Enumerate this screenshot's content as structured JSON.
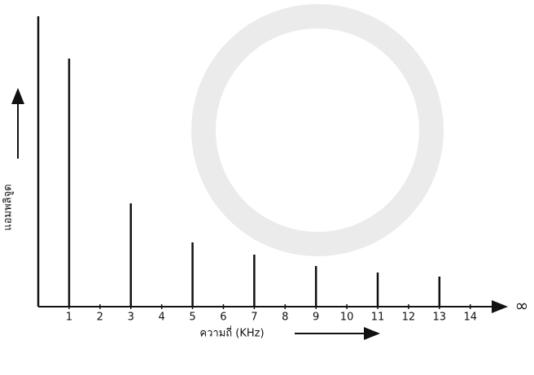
{
  "chart_data": {
    "type": "stem",
    "x_label": "ความถี่ (KHz)",
    "y_label": "แอมพลิจูด",
    "x_end_label": "∞",
    "x": [
      0,
      1,
      3,
      5,
      7,
      9,
      11,
      13
    ],
    "values": [
      357,
      305,
      127,
      79,
      64,
      50,
      42,
      37
    ],
    "color": "#111111",
    "xlim": [
      0,
      15.3
    ],
    "xticks": [
      1,
      2,
      3,
      4,
      5,
      6,
      7,
      8,
      9,
      10,
      11,
      12,
      13,
      14
    ],
    "ylim": [
      0,
      357
    ]
  }
}
